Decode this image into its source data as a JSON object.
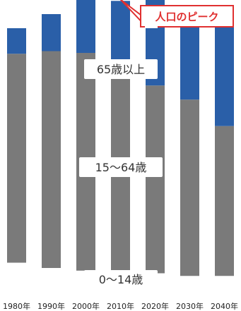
{
  "chart_data": {
    "type": "bar",
    "stacked": true,
    "categories": [
      "1980年",
      "1990年",
      "2000年",
      "2010年",
      "2020年",
      "2030年",
      "2040年"
    ],
    "series": [
      {
        "name": "0〜14歳",
        "color": "#ffffff",
        "values": [
          30,
          24,
          21,
          19,
          18,
          15,
          15
        ]
      },
      {
        "name": "15〜64歳",
        "color": "#7a7a7a",
        "values": [
          237,
          246,
          247,
          228,
          213,
          200,
          170
        ]
      },
      {
        "name": "65歳以上",
        "color": "#2a5fa8",
        "values": [
          29,
          42,
          61,
          80,
          103,
          105,
          113
        ]
      }
    ],
    "segment_labels": [
      "0〜14歳",
      "15〜64歳",
      "65歳以上"
    ],
    "annotation": {
      "text": "人口のピーク",
      "category": "2010年",
      "color": "#e03030"
    },
    "ylim": [
      0,
      320
    ],
    "grid": false,
    "legend": "none"
  }
}
